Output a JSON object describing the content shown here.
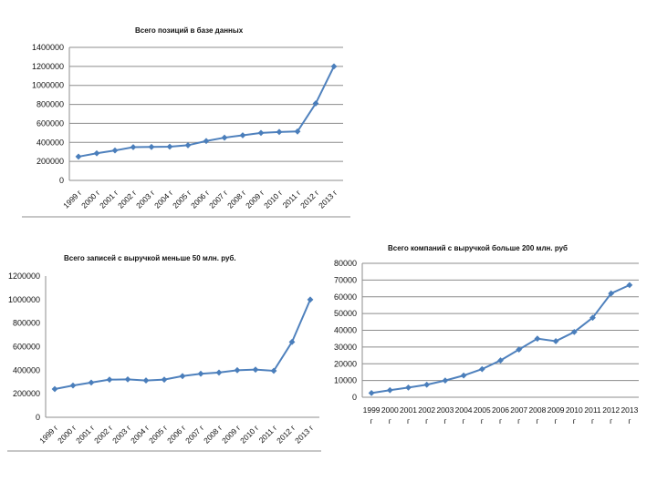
{
  "chart_data": [
    {
      "type": "line",
      "title": "Всего позиций в базе данных",
      "categories": [
        "1999 г",
        "2000 г",
        "2001 г",
        "2002 г",
        "2003 г",
        "2004 г",
        "2005 г",
        "2006 г",
        "2007 г",
        "2008 г",
        "2009 г",
        "2010 г",
        "2011 г",
        "2012 г",
        "2013 г"
      ],
      "values": [
        250000,
        285000,
        315000,
        350000,
        352000,
        355000,
        370000,
        415000,
        450000,
        475000,
        500000,
        510000,
        515000,
        810000,
        1200000
      ],
      "ylim": [
        0,
        1400000
      ],
      "yticks": [
        "0",
        "200000",
        "400000",
        "600000",
        "800000",
        "1000000",
        "1200000",
        "1400000"
      ],
      "grid": true,
      "legend": "none",
      "color": "#4f81bd"
    },
    {
      "type": "line",
      "title": "Всего записей с выручкой меньше 50 млн. руб.",
      "categories": [
        "1999 г",
        "2000 г",
        "2001 г",
        "2002 г",
        "2003 г",
        "2004 г",
        "2005 г",
        "2006 г",
        "2007 г",
        "2008 г",
        "2009 г",
        "2010 г",
        "2011 г",
        "2012 г",
        "2013 г"
      ],
      "values": [
        240000,
        270000,
        295000,
        320000,
        322000,
        313000,
        320000,
        350000,
        370000,
        380000,
        400000,
        405000,
        395000,
        640000,
        1000000
      ],
      "ylim": [
        0,
        1200000
      ],
      "yticks": [
        "0",
        "200000",
        "400000",
        "600000",
        "800000",
        "1000000",
        "1200000"
      ],
      "grid": false,
      "legend": "none",
      "color": "#4f81bd"
    },
    {
      "type": "line",
      "title": "Всего компаний с выручкой больше 200 млн. руб",
      "categories": [
        "1999 г",
        "2000 г",
        "2001 г",
        "2002 г",
        "2003 г",
        "2004 г",
        "2005 г",
        "2006 г",
        "2007 г",
        "2008 г",
        "2009 г",
        "2010 г",
        "2011 г",
        "2012 г",
        "2013 г"
      ],
      "values": [
        2500,
        4200,
        5800,
        7500,
        10000,
        13000,
        16800,
        22000,
        28500,
        35000,
        33500,
        39000,
        47500,
        62000,
        67000
      ],
      "ylim": [
        0,
        80000
      ],
      "yticks": [
        "0",
        "10000",
        "20000",
        "30000",
        "40000",
        "50000",
        "60000",
        "70000",
        "80000"
      ],
      "grid": true,
      "legend": "none",
      "color": "#4f81bd"
    }
  ]
}
